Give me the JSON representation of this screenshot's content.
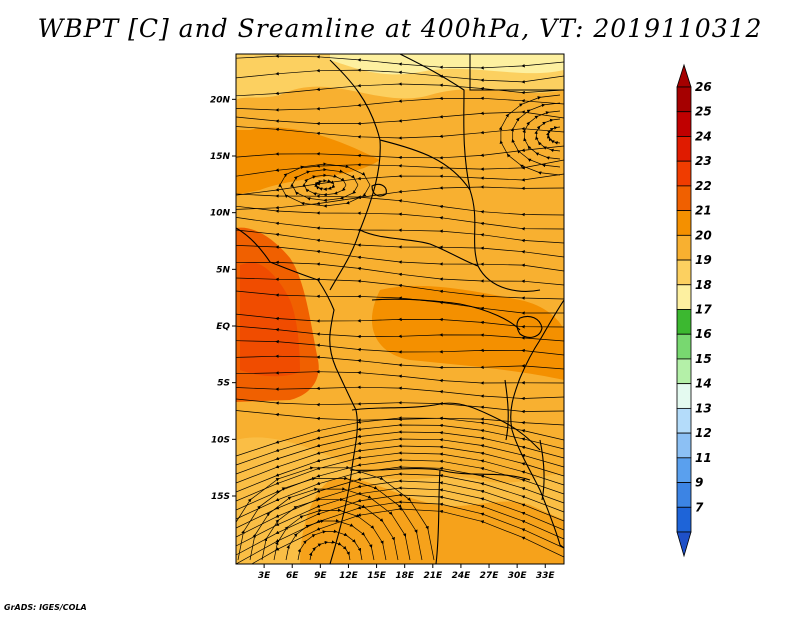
{
  "title": "WBPT [C] and Sreamline at 400hPa, VT: 2019110312",
  "credit": "GrADS: IGES/COLA",
  "map": {
    "lon_range": [
      0,
      35
    ],
    "lat_range": [
      -21,
      24
    ],
    "lon_ticks": [
      {
        "value": 3,
        "label": "3E"
      },
      {
        "value": 6,
        "label": "6E"
      },
      {
        "value": 9,
        "label": "9E"
      },
      {
        "value": 12,
        "label": "12E"
      },
      {
        "value": 15,
        "label": "15E"
      },
      {
        "value": 18,
        "label": "18E"
      },
      {
        "value": 21,
        "label": "21E"
      },
      {
        "value": 24,
        "label": "24E"
      },
      {
        "value": 27,
        "label": "27E"
      },
      {
        "value": 30,
        "label": "30E"
      },
      {
        "value": 33,
        "label": "33E"
      }
    ],
    "lat_ticks": [
      {
        "value": 20,
        "label": "20N"
      },
      {
        "value": 15,
        "label": "15N"
      },
      {
        "value": 10,
        "label": "10N"
      },
      {
        "value": 5,
        "label": "5N"
      },
      {
        "value": 0,
        "label": "EQ"
      },
      {
        "value": -5,
        "label": "5S"
      },
      {
        "value": -10,
        "label": "10S"
      },
      {
        "value": -15,
        "label": "15S"
      }
    ]
  },
  "colorbar": {
    "levels": [
      {
        "label": "26",
        "color": "#a50000"
      },
      {
        "label": "25",
        "color": "#c00000"
      },
      {
        "label": "24",
        "color": "#e01b00"
      },
      {
        "label": "23",
        "color": "#f03c00"
      },
      {
        "label": "22",
        "color": "#f06000"
      },
      {
        "label": "21",
        "color": "#f49000"
      },
      {
        "label": "20",
        "color": "#f8b030"
      },
      {
        "label": "19",
        "color": "#fcd060"
      },
      {
        "label": "18",
        "color": "#fdf0a0"
      },
      {
        "label": "17",
        "color": "#3cb830"
      },
      {
        "label": "16",
        "color": "#78d870"
      },
      {
        "label": "15",
        "color": "#b4f0a8"
      },
      {
        "label": "14",
        "color": "#e4faf0"
      },
      {
        "label": "13",
        "color": "#b4dcfa"
      },
      {
        "label": "12",
        "color": "#8cc0f4"
      },
      {
        "label": "11",
        "color": "#5aa0ee"
      },
      {
        "label": "9",
        "color": "#3c84e4"
      },
      {
        "label": "7",
        "color": "#1e64d8"
      }
    ],
    "bottom_color": "#1e50c8"
  }
}
